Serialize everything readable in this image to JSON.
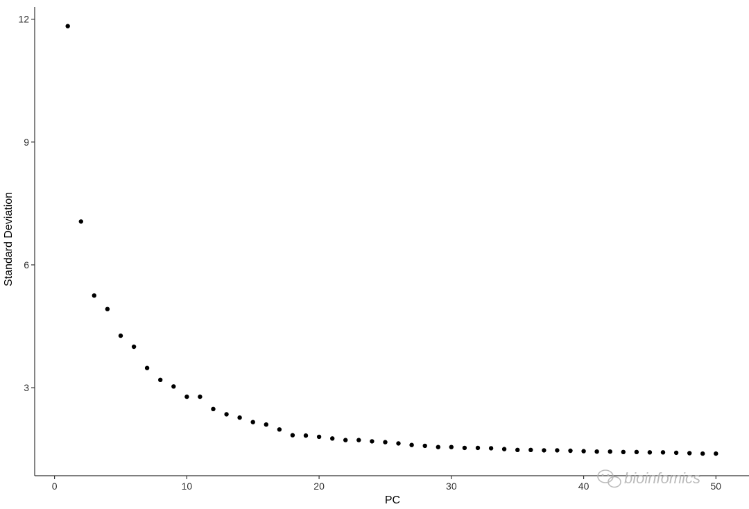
{
  "chart_data": {
    "type": "scatter",
    "xlabel": "PC",
    "ylabel": "Standard Deviation",
    "xlim": [
      -1.5,
      52.5
    ],
    "ylim": [
      0.85,
      12.3
    ],
    "xticks": [
      0,
      10,
      20,
      30,
      40,
      50
    ],
    "yticks": [
      3,
      6,
      9,
      12
    ],
    "grid": false,
    "point_color": "#000000",
    "axis_color": "#333333",
    "x": [
      1,
      2,
      3,
      4,
      5,
      6,
      7,
      8,
      9,
      10,
      11,
      12,
      13,
      14,
      15,
      16,
      17,
      18,
      19,
      20,
      21,
      22,
      23,
      24,
      25,
      26,
      27,
      28,
      29,
      30,
      31,
      32,
      33,
      34,
      35,
      36,
      37,
      38,
      39,
      40,
      41,
      42,
      43,
      44,
      45,
      46,
      47,
      48,
      49,
      50
    ],
    "y": [
      11.83,
      7.06,
      5.25,
      4.92,
      4.27,
      4.0,
      3.48,
      3.19,
      3.03,
      2.78,
      2.78,
      2.48,
      2.35,
      2.27,
      2.16,
      2.1,
      1.98,
      1.84,
      1.83,
      1.8,
      1.76,
      1.72,
      1.72,
      1.69,
      1.67,
      1.64,
      1.6,
      1.58,
      1.55,
      1.55,
      1.53,
      1.53,
      1.52,
      1.5,
      1.48,
      1.48,
      1.47,
      1.47,
      1.46,
      1.45,
      1.44,
      1.44,
      1.43,
      1.43,
      1.42,
      1.42,
      1.41,
      1.4,
      1.39,
      1.39
    ]
  },
  "watermark": {
    "text": "bioinfomics",
    "icon": "wechat-icon"
  }
}
